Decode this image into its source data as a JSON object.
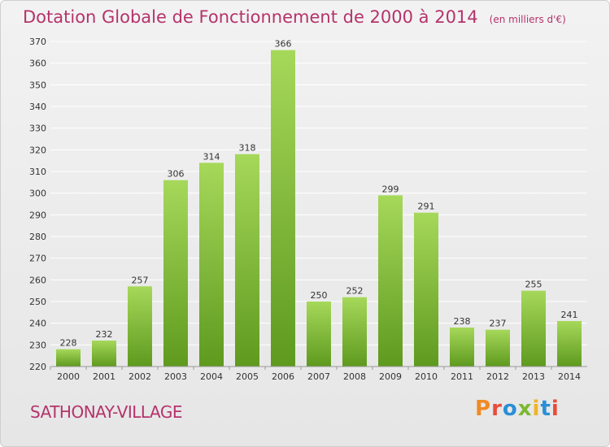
{
  "header": {
    "title": "Dotation Globale de Fonctionnement de 2000 à 2014",
    "subtitle": "(en milliers d'€)"
  },
  "footer": {
    "place": "SATHONAY-VILLAGE",
    "brand": "Proxiti"
  },
  "colors": {
    "title": "#b5336b",
    "bar_top": "#a6d85a",
    "bar_bottom": "#5e9a1e",
    "grid": "#ffffff",
    "brand_letters": [
      "#f08a24",
      "#e74c3c",
      "#2a8fd6",
      "#7cb82f",
      "#f0b424",
      "#2a8fd6",
      "#e74c3c"
    ]
  },
  "chart_data": {
    "type": "bar",
    "categories": [
      "2000",
      "2001",
      "2002",
      "2003",
      "2004",
      "2005",
      "2006",
      "2007",
      "2008",
      "2009",
      "2010",
      "2011",
      "2012",
      "2013",
      "2014"
    ],
    "values": [
      228,
      232,
      257,
      306,
      314,
      318,
      366,
      250,
      252,
      299,
      291,
      238,
      237,
      255,
      241
    ],
    "title": "Dotation Globale de Fonctionnement de 2000 à 2014",
    "subtitle": "(en milliers d'€)",
    "xlabel": "",
    "ylabel": "",
    "ylim": [
      220,
      370
    ],
    "yticks": [
      220,
      230,
      240,
      250,
      260,
      270,
      280,
      290,
      300,
      310,
      320,
      330,
      340,
      350,
      360,
      370
    ],
    "grid": true,
    "data_labels": true
  }
}
